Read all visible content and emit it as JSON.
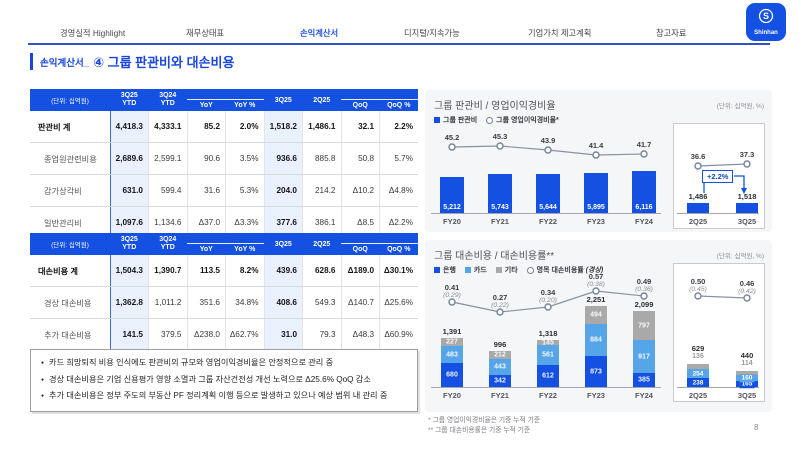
{
  "nav": {
    "tabs": [
      {
        "label": "경영실적 Highlight",
        "active": false
      },
      {
        "label": "재무상태표",
        "active": false
      },
      {
        "label": "손익계산서",
        "active": true
      },
      {
        "label": "디지털/지속가능",
        "active": false
      },
      {
        "label": "기업가치 제고계획",
        "active": false
      },
      {
        "label": "참고자료",
        "active": false
      }
    ]
  },
  "logo": {
    "brand": "Shinhan"
  },
  "title": {
    "prefix": "손익계산서_",
    "main": "④ 그룹 판관비와 대손비용"
  },
  "colors": {
    "accent": "#1450e2",
    "highlight": "#e9f1fc",
    "line": "#8592a4",
    "series": {
      "bank": "#1450e2",
      "card": "#57a5e9",
      "etc": "#a9a9a9"
    }
  },
  "tables": [
    {
      "unit_label": "(단위: 십억원)",
      "columns": [
        "3Q25 YTD",
        "3Q24 YTD",
        "YoY",
        "YoY %",
        "3Q25",
        "2Q25",
        "QoQ",
        "QoQ %"
      ],
      "rows": [
        {
          "label": "판관비 계",
          "bold": true,
          "values": [
            "4,418.3",
            "4,333.1",
            "85.2",
            "2.0%",
            "1,518.2",
            "1,486.1",
            "32.1",
            "2.2%"
          ]
        },
        {
          "label": "종업원관련비용",
          "bold": false,
          "values": [
            "2,689.6",
            "2,599.1",
            "90.6",
            "3.5%",
            "936.6",
            "885.8",
            "50.8",
            "5.7%"
          ]
        },
        {
          "label": "감가상각비",
          "bold": false,
          "values": [
            "631.0",
            "599.4",
            "31.6",
            "5.3%",
            "204.0",
            "214.2",
            "Δ10.2",
            "Δ4.8%"
          ]
        },
        {
          "label": "일반관리비",
          "bold": false,
          "values": [
            "1,097.6",
            "1,134.6",
            "Δ37.0",
            "Δ3.3%",
            "377.6",
            "386.1",
            "Δ8.5",
            "Δ2.2%"
          ]
        }
      ]
    },
    {
      "unit_label": "(단위: 십억원)",
      "columns": [
        "3Q25 YTD",
        "3Q24 YTD",
        "YoY",
        "YoY %",
        "3Q25",
        "2Q25",
        "QoQ",
        "QoQ %"
      ],
      "rows": [
        {
          "label": "대손비용 계",
          "bold": true,
          "values": [
            "1,504.3",
            "1,390.7",
            "113.5",
            "8.2%",
            "439.6",
            "628.6",
            "Δ189.0",
            "Δ30.1%"
          ]
        },
        {
          "label": "경상 대손비용",
          "bold": false,
          "values": [
            "1,362.8",
            "1,011.2",
            "351.6",
            "34.8%",
            "408.6",
            "549.3",
            "Δ140.7",
            "Δ25.6%"
          ]
        },
        {
          "label": "추가 대손비용",
          "bold": false,
          "values": [
            "141.5",
            "379.5",
            "Δ238.0",
            "Δ62.7%",
            "31.0",
            "79.3",
            "Δ48.3",
            "Δ60.9%"
          ]
        }
      ]
    }
  ],
  "bullets": [
    "카드 희망퇴직 비용 인식에도 판관비의 규모와 영업이익경비율은 안정적으로 관리 중",
    "경상 대손비용은 기업 신용평가 영향 소멸과 그룹 자산건전성 개선 노력으로 Δ25.6% QoQ 감소",
    "추가 대손비용은 정부 주도의 부동산 PF 정리계획 이행 등으로 발생하고 있으나 예상 범위 내 관리 중"
  ],
  "chart_data": [
    {
      "type": "bar",
      "title": "그룹 판관비 / 영업이익경비율",
      "unit_label": "(단위: 십억원, %)",
      "legend": [
        {
          "type": "bar",
          "key": "accent",
          "label": "그룹 판관비"
        },
        {
          "type": "line",
          "label": "그룹 영업이익경비율*"
        }
      ],
      "main": {
        "categories": [
          "FY20",
          "FY21",
          "FY22",
          "FY23",
          "FY24"
        ],
        "bars": [
          5212,
          5743,
          5644,
          5895,
          6116
        ],
        "bar_labels": [
          "5,212",
          "5,743",
          "5,644",
          "5,895",
          "6,116"
        ],
        "line": [
          45.2,
          45.3,
          43.9,
          41.4,
          41.7
        ],
        "line_labels": [
          "45.2",
          "45.3",
          "43.9",
          "41.4",
          "41.7"
        ]
      },
      "box": {
        "categories": [
          "2Q25",
          "3Q25"
        ],
        "bars": [
          1486,
          1518
        ],
        "bar_labels": [
          "1,486",
          "1,518"
        ],
        "line": [
          36.6,
          37.3
        ],
        "line_labels": [
          "36.6",
          "37.3"
        ],
        "annotation": "+2.2%"
      }
    },
    {
      "type": "stacked-bar",
      "title": "그룹 대손비용 / 대손비용률**",
      "unit_label": "(단위: 십억원, %)",
      "legend": [
        {
          "type": "swatch",
          "key": "bank",
          "label": "은행"
        },
        {
          "type": "swatch",
          "key": "card",
          "label": "카드"
        },
        {
          "type": "swatch",
          "key": "etc",
          "label": "기타"
        },
        {
          "type": "line",
          "label": "명목 대손비용률",
          "label_sub": "(경상)"
        }
      ],
      "stack_order": [
        "bank",
        "card",
        "etc"
      ],
      "series_names": {
        "bank": "은행",
        "card": "카드",
        "etc": "기타"
      },
      "main": {
        "categories": [
          "FY20",
          "FY21",
          "FY22",
          "FY23",
          "FY24"
        ],
        "totals": [
          "1,391",
          "996",
          "1,318",
          "2,251",
          "2,099"
        ],
        "stacks": {
          "bank": [
            680,
            342,
            612,
            873,
            385
          ],
          "card": [
            483,
            443,
            561,
            884,
            917
          ],
          "etc": [
            227,
            212,
            145,
            494,
            797
          ]
        },
        "line": [
          0.41,
          0.27,
          0.34,
          0.57,
          0.49
        ],
        "line_labels": [
          "0.41",
          "0.27",
          "0.34",
          "0.57",
          "0.49"
        ],
        "line_sub": [
          "(0.29)",
          "(0.22)",
          "(0.20)",
          "(0.38)",
          "(0.36)"
        ]
      },
      "box": {
        "categories": [
          "2Q25",
          "3Q25"
        ],
        "totals": [
          "629",
          "440"
        ],
        "stacks": {
          "bank": [
            238,
            165
          ],
          "card": [
            254,
            160
          ],
          "etc": [
            136,
            114
          ]
        },
        "etc_above": [
          "136",
          "114"
        ],
        "line": [
          0.5,
          0.46
        ],
        "line_labels": [
          "0.50",
          "0.46"
        ],
        "line_sub": [
          "(0.45)",
          "(0.42)"
        ]
      }
    }
  ],
  "footnotes": [
    "* 그룹 영업이익경비율은 기중 누적 기준",
    "** 그룹 대손비용률은 기중 누적 기준"
  ],
  "page_number": "8"
}
